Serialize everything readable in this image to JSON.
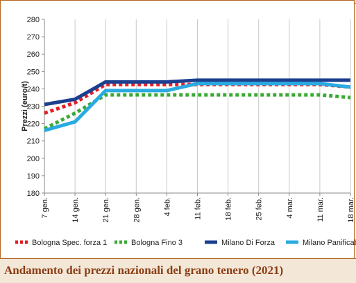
{
  "footer": {
    "title": "Andamento dei prezzi nazionali del grano tenero (2021)"
  },
  "chart_data": {
    "type": "line",
    "title": "Andamento dei prezzi nazionali del grano tenero (2021)",
    "xlabel": "",
    "ylabel": "Prezzi (euro/t)",
    "ylim": [
      180,
      280
    ],
    "yticks": [
      180,
      190,
      200,
      210,
      220,
      230,
      240,
      250,
      260,
      270,
      280
    ],
    "grid": "vertical",
    "legend_position": "bottom",
    "categories": [
      "7 gen.",
      "14 gen.",
      "21 gen.",
      "28 gen.",
      "4 feb.",
      "11 feb.",
      "18 feb.",
      "25 feb.",
      "4 mar.",
      "11 mar.",
      "18 mar."
    ],
    "series": [
      {
        "name": "Bologna Spec. forza 1",
        "color": "#e31e24",
        "style": "dotted",
        "values": [
          226,
          232,
          242.5,
          242.5,
          242.5,
          242.5,
          242.5,
          242.5,
          242.5,
          242.5,
          241
        ]
      },
      {
        "name": "Bologna Fino 3",
        "color": "#3aaa35",
        "style": "dotted",
        "values": [
          217,
          226,
          236.5,
          236.5,
          236.5,
          236.5,
          236.5,
          236.5,
          236.5,
          236.5,
          235
        ]
      },
      {
        "name": "Milano Di Forza",
        "color": "#1a3f8f",
        "style": "solid",
        "values": [
          231,
          234,
          244,
          244,
          244,
          245,
          245,
          245,
          245,
          245,
          245
        ]
      },
      {
        "name": "Milano Panificabile",
        "color": "#29abe2",
        "style": "solid",
        "values": [
          216,
          221,
          239,
          239,
          239,
          243,
          243,
          243,
          243,
          243,
          241
        ]
      }
    ]
  }
}
